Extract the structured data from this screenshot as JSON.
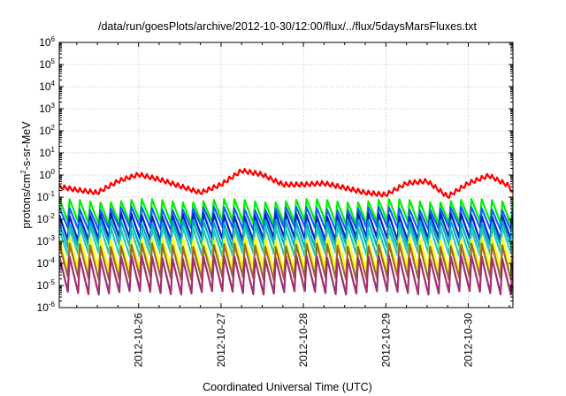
{
  "chart_data": {
    "type": "line",
    "title": "/data/run/goesPlots/archive/2012-10-30/12:00/flux/../flux/5daysMarsFluxes.txt",
    "xlabel": "Coordinated Universal Time (UTC)",
    "ylabel_parts": {
      "pre": "protons/cm",
      "sup": "2",
      "post": "-s-sr-MeV"
    },
    "x_ticks": [
      "2012-10-26",
      "2012-10-27",
      "2012-10-28",
      "2012-10-29",
      "2012-10-30"
    ],
    "y_ticks": [
      {
        "base": "10",
        "exp": "6"
      },
      {
        "base": "10",
        "exp": "5"
      },
      {
        "base": "10",
        "exp": "4"
      },
      {
        "base": "10",
        "exp": "3"
      },
      {
        "base": "10",
        "exp": "2"
      },
      {
        "base": "10",
        "exp": "1"
      },
      {
        "base": "10",
        "exp": "0"
      },
      {
        "base": "10",
        "exp": "-1"
      },
      {
        "base": "10",
        "exp": "-2"
      },
      {
        "base": "10",
        "exp": "-3"
      },
      {
        "base": "10",
        "exp": "-4"
      },
      {
        "base": "10",
        "exp": "-5"
      },
      {
        "base": "10",
        "exp": "-6"
      }
    ],
    "y_scale": "log",
    "ylim": [
      1e-06,
      1000000.0
    ],
    "xlim": [
      "2012-10-25T00:54",
      "2012-10-30T13:00"
    ],
    "grid": true,
    "series": [
      {
        "color": "#ff0000",
        "x": [
          "2012-10-25T00:54",
          "2012-10-25T06:00",
          "2012-10-25T12:00",
          "2012-10-25T18:00",
          "2012-10-26T00:00",
          "2012-10-26T06:00",
          "2012-10-26T12:00",
          "2012-10-26T18:00",
          "2012-10-27T00:00",
          "2012-10-27T06:00",
          "2012-10-27T12:00",
          "2012-10-27T18:00",
          "2012-10-28T00:00",
          "2012-10-28T06:00",
          "2012-10-28T12:00",
          "2012-10-28T18:00",
          "2012-10-29T00:00",
          "2012-10-29T06:00",
          "2012-10-29T12:00",
          "2012-10-29T18:00",
          "2012-10-30T00:00",
          "2012-10-30T06:00",
          "2012-10-30T12:00",
          "2012-10-30T13:00"
        ],
        "values": [
          0.28,
          0.2,
          0.15,
          0.5,
          1.0,
          0.6,
          0.3,
          0.15,
          0.35,
          1.5,
          1.0,
          0.35,
          0.35,
          0.4,
          0.25,
          0.15,
          0.12,
          0.4,
          0.5,
          0.1,
          0.4,
          0.9,
          0.3,
          0.12
        ]
      },
      {
        "color": "#00ee00",
        "base": 0.022,
        "amp": 0.5
      },
      {
        "color": "#1060ff",
        "base": 0.011,
        "amp": 0.45
      },
      {
        "color": "#0022cc",
        "base": 0.0045,
        "amp": 0.55
      },
      {
        "color": "#00aacc",
        "base": 0.0022,
        "amp": 0.55
      },
      {
        "color": "#22ccaa",
        "base": 0.001,
        "amp": 0.6
      },
      {
        "color": "#ffff00",
        "base": 0.00025,
        "amp": 0.7
      },
      {
        "color": "#9a6a30",
        "base": 0.00012,
        "amp": 0.75
      },
      {
        "color": "#a03070",
        "base": 3e-05,
        "amp": 0.8
      }
    ]
  }
}
